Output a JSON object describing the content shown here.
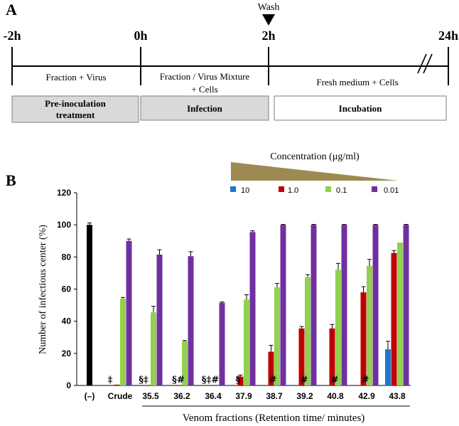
{
  "panel_a": {
    "label": "A",
    "wash_label": "Wash",
    "time_labels": [
      "-2h",
      "0h",
      "2h",
      "24h"
    ],
    "segment_labels": {
      "pre": "Fraction + Virus",
      "infection_line1": "Fraction / Virus Mixture",
      "infection_line2": "+ Cells",
      "incubation": "Fresh medium + Cells"
    },
    "phase_boxes": {
      "pre_line1": "Pre-inoculation",
      "pre_line2": "treatment",
      "infection": "Infection",
      "incubation": "Incubation"
    },
    "colors": {
      "pre_box": "#d9d9d9",
      "infection_box": "#d9d9d9",
      "incubation_box": "#ffffff"
    }
  },
  "panel_b": {
    "label": "B",
    "concentration_title": "Concentration (μg/ml)",
    "wedge_color": "#9c8a52",
    "x_group_label": "Venom fractions (Retention time/ minutes)"
  },
  "chart_data": {
    "type": "bar",
    "ylabel": "Number of infectious center (%)",
    "xlabel": "Venom fractions (Retention time/ minutes)",
    "ylim": [
      0,
      120
    ],
    "yticks": [
      0,
      20,
      40,
      60,
      80,
      100,
      120
    ],
    "legend_position": "top-right",
    "categories": [
      "(–)",
      "Crude",
      "35.5",
      "36.2",
      "36.4",
      "37.9",
      "38.7",
      "39.2",
      "40.8",
      "42.9",
      "43.8"
    ],
    "control": {
      "category": "(–)",
      "value": 100,
      "error": 1.2,
      "color": "#000000"
    },
    "series": [
      {
        "name": "10",
        "color": "#1f77c9",
        "values": [
          null,
          0,
          0,
          0,
          0,
          0,
          0,
          0,
          0,
          0,
          22.5
        ],
        "errors": [
          null,
          0,
          0,
          0,
          0,
          0,
          0,
          0,
          0,
          0,
          5
        ]
      },
      {
        "name": "1.0",
        "color": "#c00000",
        "values": [
          null,
          0.5,
          0,
          0,
          0,
          5.5,
          21,
          35.5,
          35.5,
          58,
          82.5
        ],
        "errors": [
          null,
          0,
          0,
          0,
          0,
          1,
          4,
          1.2,
          2.5,
          3.5,
          1.5
        ]
      },
      {
        "name": "0.1",
        "color": "#92d050",
        "values": [
          null,
          54,
          45.5,
          27.5,
          0,
          53.5,
          61,
          67.5,
          72,
          74.5,
          89
        ],
        "errors": [
          null,
          0.8,
          3.8,
          0.5,
          0,
          3,
          2.5,
          1.5,
          4,
          4,
          0
        ]
      },
      {
        "name": "0.01",
        "color": "#7030a0",
        "values": [
          null,
          90,
          81.5,
          80.5,
          51.5,
          95.5,
          100,
          100,
          100,
          100,
          100
        ],
        "errors": [
          null,
          1.2,
          3,
          2.8,
          0.5,
          0.8,
          0.3,
          0.3,
          0.3,
          0.3,
          0.3
        ]
      }
    ],
    "annotations": [
      {
        "category": "Crude",
        "text": "‡"
      },
      {
        "category": "35.5",
        "text": "§‡"
      },
      {
        "category": "36.2",
        "text": "§#"
      },
      {
        "category": "36.4",
        "text": "§‡#"
      },
      {
        "category": "37.9",
        "text": "§"
      },
      {
        "category": "38.7",
        "text": "#"
      },
      {
        "category": "39.2",
        "text": "#"
      },
      {
        "category": "40.8",
        "text": "#"
      },
      {
        "category": "42.9",
        "text": "#"
      }
    ]
  }
}
